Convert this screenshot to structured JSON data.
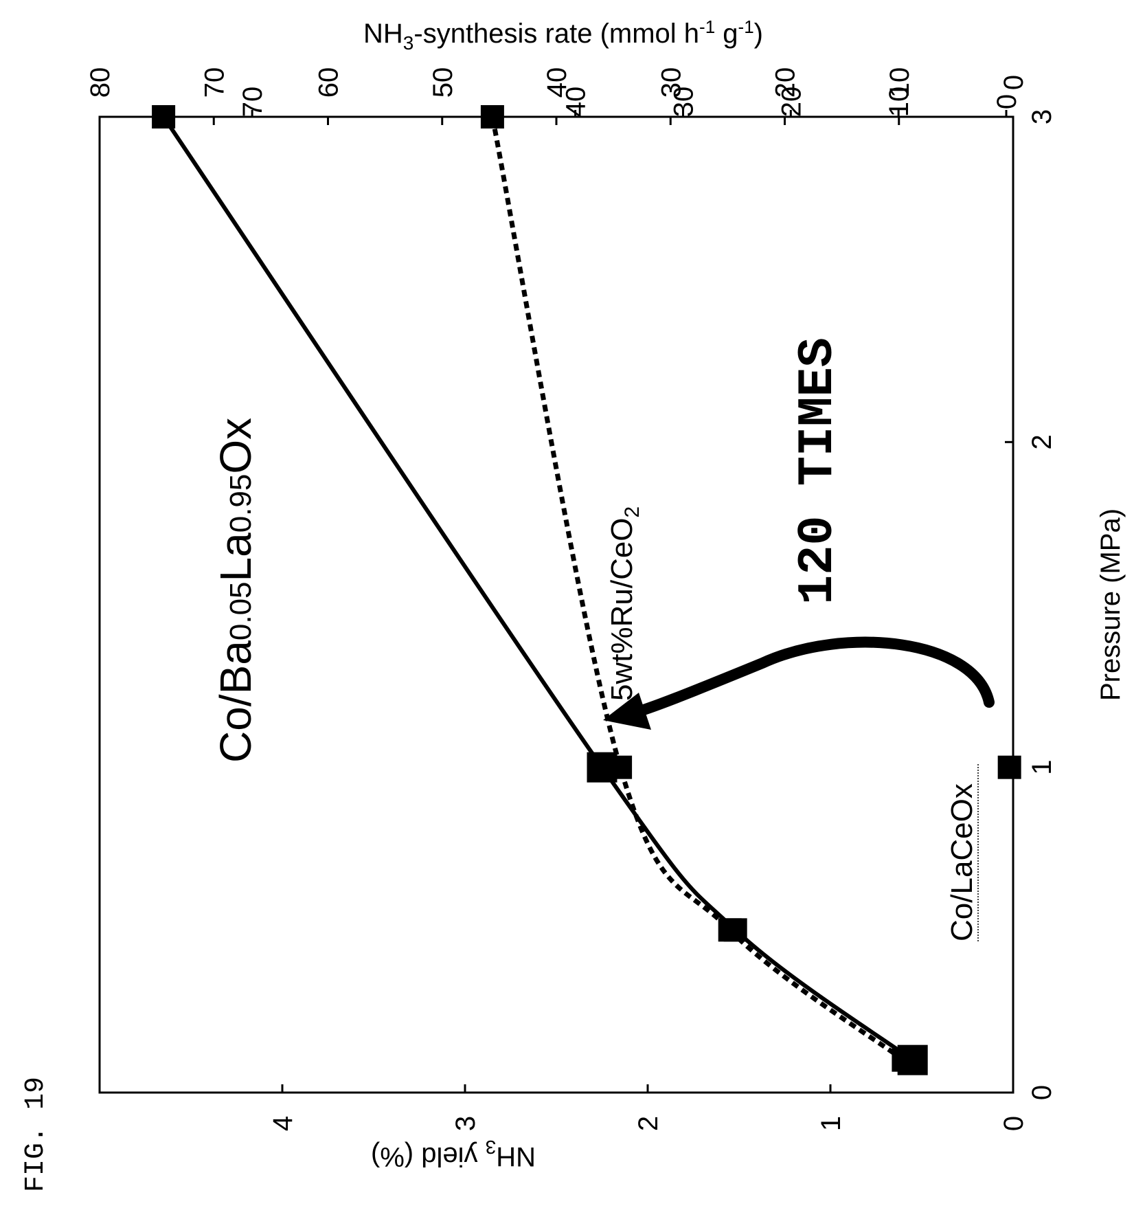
{
  "figure_label": "FIG. 19",
  "chart_data": {
    "type": "line",
    "orientation": "rotated 90 degrees counter-clockwise",
    "x_axis": {
      "label_main": "Pressure (MPa)",
      "range": [
        0,
        3
      ],
      "ticks": [
        "0",
        "1",
        "2",
        "3"
      ]
    },
    "y_axis_left": {
      "label_pre": "NH",
      "label_sub": "3",
      "label_post": " yield (%)",
      "range": [
        0,
        5
      ],
      "ticks": [
        "0",
        "1",
        "2",
        "3",
        "4"
      ]
    },
    "y_axis_right": {
      "label_pre": "NH",
      "label_sub": "3",
      "label_mid": "-synthesis rate (mmol h",
      "label_sup1": "-1",
      "label_mid2": " g",
      "label_sup2": "-1",
      "label_post": ")",
      "ticks_outer": [
        "0",
        "10",
        "20",
        "30",
        "40",
        "50",
        "60",
        "70",
        "80"
      ],
      "ticks_inner": [
        "0",
        "10",
        "20",
        "30",
        "40",
        "70"
      ]
    },
    "series": [
      {
        "name": "Co/Ba0.05La0.95Ox",
        "label_parts": [
          "Co/Ba",
          "0.05",
          "La",
          "0.95",
          "Ox"
        ],
        "style": "solid",
        "marker": "square",
        "x": [
          0.1,
          0.5,
          1.0,
          3.0
        ],
        "y": [
          0.55,
          1.52,
          2.25,
          4.65
        ]
      },
      {
        "name": "5wt%Ru/CeO2",
        "label_pre": "5wt%Ru/CeO",
        "label_sub": "2",
        "style": "dotted",
        "marker": "square",
        "x": [
          0.1,
          0.5,
          1.0,
          3.0
        ],
        "y": [
          0.6,
          1.55,
          2.15,
          2.85
        ]
      },
      {
        "name": "Co/LaCeOx",
        "style": "marker-only",
        "marker": "square",
        "x": [
          1.0
        ],
        "y": [
          0.02
        ]
      }
    ],
    "annotations": [
      {
        "text": "120 TIMES",
        "style": "bold monospace"
      }
    ]
  }
}
